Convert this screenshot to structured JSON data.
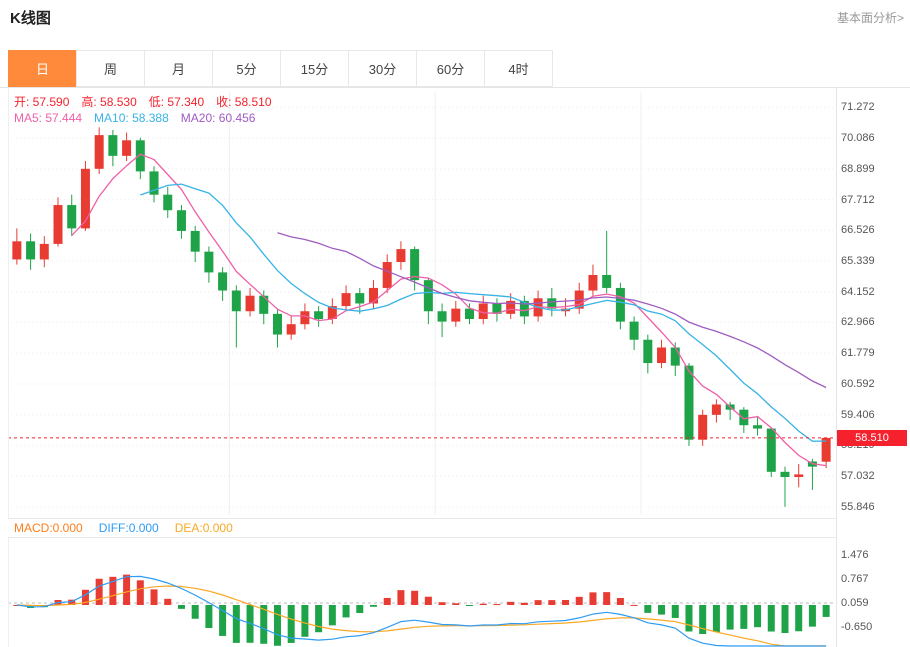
{
  "header": {
    "title": "K线图",
    "link": "基本面分析>"
  },
  "tabs": [
    {
      "id": "day",
      "label": "日",
      "active": true
    },
    {
      "id": "week",
      "label": "周",
      "active": false
    },
    {
      "id": "month",
      "label": "月",
      "active": false
    },
    {
      "id": "min5",
      "label": "5分",
      "active": false
    },
    {
      "id": "min15",
      "label": "15分",
      "active": false
    },
    {
      "id": "min30",
      "label": "30分",
      "active": false
    },
    {
      "id": "min60",
      "label": "60分",
      "active": false
    },
    {
      "id": "hour4",
      "label": "4时",
      "active": false
    }
  ],
  "ohlc_legend": {
    "color": "#f5222d",
    "items": [
      {
        "id": "open",
        "text": "开: 57.590"
      },
      {
        "id": "high",
        "text": "高: 58.530"
      },
      {
        "id": "low",
        "text": "低: 57.340"
      },
      {
        "id": "close",
        "text": "收: 58.510"
      }
    ]
  },
  "ma_legend": [
    {
      "id": "ma5",
      "text": "MA5: 57.444",
      "color": "#ef5fa7"
    },
    {
      "id": "ma10",
      "text": "MA10: 58.388",
      "color": "#38b3e6"
    },
    {
      "id": "ma20",
      "text": "MA20: 60.456",
      "color": "#9f5cc0"
    }
  ],
  "macd_legend": [
    {
      "id": "macd",
      "text": "MACD:0.000",
      "color": "#ff7d1a"
    },
    {
      "id": "diff",
      "text": "DIFF:0.000",
      "color": "#2f9cf4"
    },
    {
      "id": "dea",
      "text": "DEA:0.000",
      "color": "#f9a825"
    }
  ],
  "chart_data": {
    "type": "candlestick+macd",
    "up_color": "#e83b32",
    "down_color": "#1ea348",
    "price_axis_labels": [
      "71.272",
      "70.086",
      "68.899",
      "67.712",
      "66.526",
      "65.339",
      "64.152",
      "62.966",
      "61.779",
      "60.592",
      "59.406",
      "58.219",
      "57.032",
      "55.846"
    ],
    "macd_axis_labels": [
      "1.476",
      "0.767",
      "0.059",
      "-0.650"
    ],
    "last_price": 58.51,
    "last_price_text": "58.510",
    "last_price_color": "#f5222d",
    "current": {
      "open": 57.59,
      "high": 58.53,
      "low": 57.34,
      "close": 58.51,
      "ma5": 57.444,
      "ma10": 58.388,
      "ma20": 60.456,
      "macd": 0.0,
      "diff": 0.0,
      "dea": 0.0
    },
    "ma_periods": [
      5,
      10,
      20
    ],
    "candles": [
      [
        65.4,
        66.6,
        65.2,
        66.1
      ],
      [
        66.1,
        66.4,
        65.0,
        65.4
      ],
      [
        65.4,
        66.3,
        65.1,
        66.0
      ],
      [
        66.0,
        67.8,
        65.9,
        67.5
      ],
      [
        67.5,
        67.9,
        66.3,
        66.6
      ],
      [
        66.6,
        69.2,
        66.5,
        68.9
      ],
      [
        68.9,
        70.5,
        68.7,
        70.2
      ],
      [
        70.2,
        70.4,
        69.0,
        69.4
      ],
      [
        69.4,
        70.3,
        69.2,
        70.0
      ],
      [
        70.0,
        70.1,
        68.5,
        68.8
      ],
      [
        68.8,
        69.0,
        67.6,
        67.9
      ],
      [
        67.9,
        68.2,
        67.0,
        67.3
      ],
      [
        67.3,
        67.5,
        66.2,
        66.5
      ],
      [
        66.5,
        66.7,
        65.3,
        65.7
      ],
      [
        65.7,
        65.9,
        64.5,
        64.9
      ],
      [
        64.9,
        65.1,
        63.8,
        64.2
      ],
      [
        64.2,
        64.4,
        62.0,
        63.4
      ],
      [
        63.4,
        64.3,
        63.2,
        64.0
      ],
      [
        64.0,
        64.2,
        62.9,
        63.3
      ],
      [
        63.3,
        63.5,
        62.0,
        62.5
      ],
      [
        62.5,
        63.2,
        62.3,
        62.9
      ],
      [
        62.9,
        63.7,
        62.7,
        63.4
      ],
      [
        63.4,
        63.6,
        62.8,
        63.1
      ],
      [
        63.1,
        63.9,
        62.9,
        63.6
      ],
      [
        63.6,
        64.4,
        63.4,
        64.1
      ],
      [
        64.1,
        64.3,
        63.3,
        63.7
      ],
      [
        63.7,
        64.6,
        63.5,
        64.3
      ],
      [
        64.3,
        65.6,
        64.1,
        65.3
      ],
      [
        65.3,
        66.1,
        65.0,
        65.8
      ],
      [
        65.8,
        65.9,
        64.2,
        64.6
      ],
      [
        64.6,
        64.7,
        62.9,
        63.4
      ],
      [
        63.4,
        63.7,
        62.4,
        63.0
      ],
      [
        63.0,
        63.8,
        62.8,
        63.5
      ],
      [
        63.5,
        63.7,
        62.9,
        63.1
      ],
      [
        63.1,
        64.0,
        62.9,
        63.7
      ],
      [
        63.7,
        63.9,
        63.0,
        63.3
      ],
      [
        63.3,
        64.1,
        63.1,
        63.8
      ],
      [
        63.8,
        64.0,
        62.9,
        63.2
      ],
      [
        63.2,
        64.2,
        63.0,
        63.9
      ],
      [
        63.9,
        64.3,
        63.2,
        63.5
      ],
      [
        63.4,
        63.9,
        63.2,
        63.5
      ],
      [
        63.5,
        64.5,
        63.3,
        64.2
      ],
      [
        64.2,
        65.2,
        64.0,
        64.8
      ],
      [
        64.8,
        66.5,
        64.1,
        64.3
      ],
      [
        64.3,
        64.5,
        62.7,
        63.0
      ],
      [
        63.0,
        63.2,
        61.9,
        62.3
      ],
      [
        62.3,
        62.5,
        61.0,
        61.4
      ],
      [
        61.4,
        62.3,
        61.2,
        62.0
      ],
      [
        62.0,
        62.2,
        60.9,
        61.3
      ],
      [
        61.3,
        61.4,
        58.2,
        58.44
      ],
      [
        58.44,
        59.6,
        58.2,
        59.4
      ],
      [
        59.4,
        60.0,
        59.1,
        59.8
      ],
      [
        59.8,
        59.9,
        59.2,
        59.6
      ],
      [
        59.6,
        59.7,
        58.7,
        59.0
      ],
      [
        59.0,
        59.3,
        58.6,
        58.87
      ],
      [
        58.87,
        58.9,
        57.0,
        57.2
      ],
      [
        57.2,
        57.4,
        55.85,
        57.0
      ],
      [
        57.0,
        57.5,
        56.6,
        57.1
      ],
      [
        57.6,
        57.7,
        56.5,
        57.4
      ],
      [
        57.59,
        58.53,
        57.34,
        58.51
      ]
    ]
  }
}
